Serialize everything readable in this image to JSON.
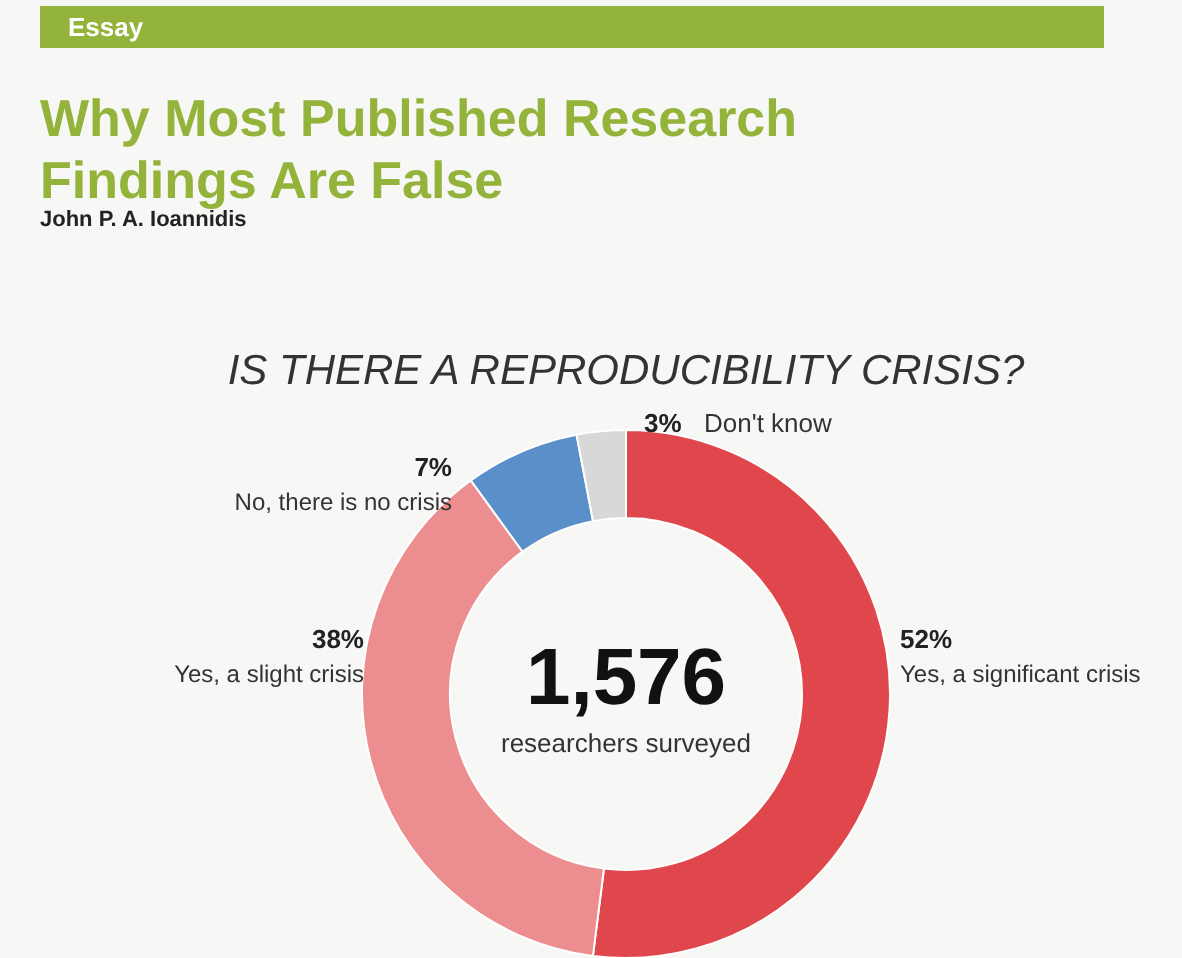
{
  "chart_data": {
    "type": "donut",
    "title": "IS THERE A REPRODUCIBILITY CRISIS?",
    "categories": [
      "Yes, a significant crisis",
      "Yes, a slight crisis",
      "No, there is no crisis",
      "Don't know"
    ],
    "values": [
      52,
      38,
      7,
      3
    ],
    "value_labels": [
      "52%",
      "38%",
      "7%",
      "3%"
    ],
    "colors": [
      "#e0474c",
      "#ec8e8f",
      "#5b8fc9",
      "#d8d8d8"
    ],
    "annotations": [
      "Essay",
      "Why Most Published Research Findings Are False",
      "John P. A. Ioannidis",
      "1,576",
      "researchers surveyed"
    ]
  }
}
